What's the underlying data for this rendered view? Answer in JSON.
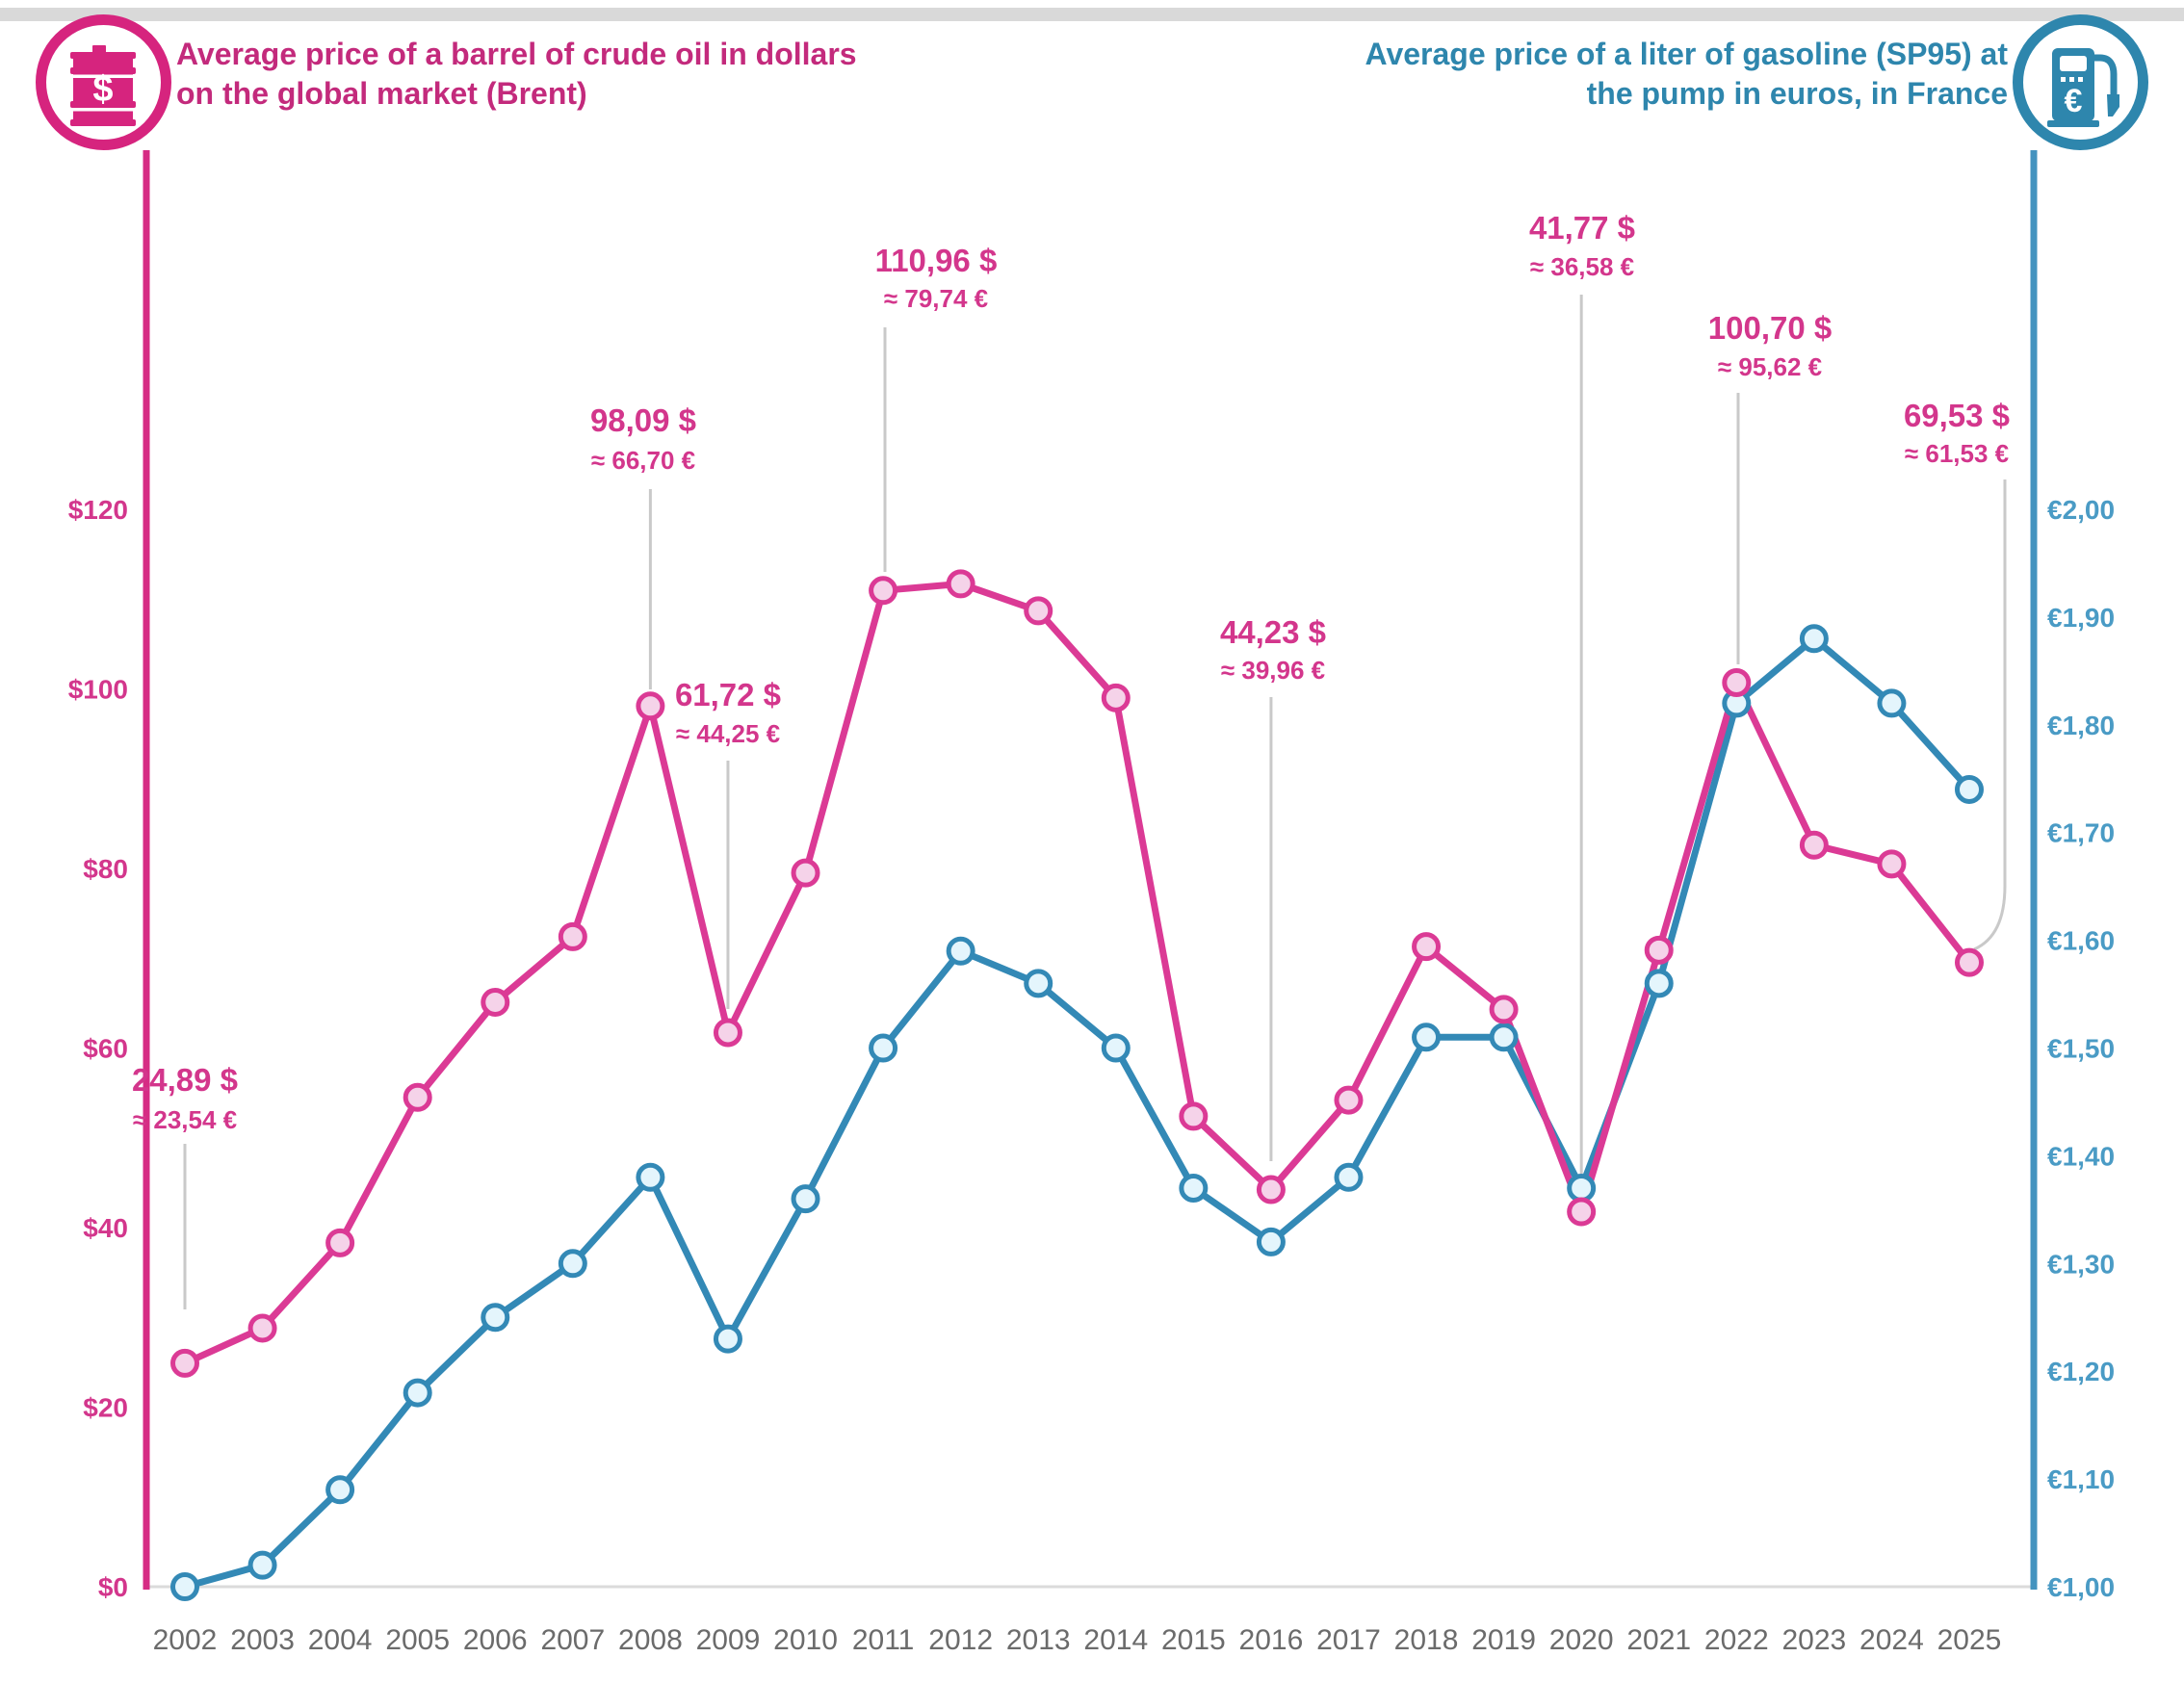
{
  "header": {
    "brent_title_line1": "Average price of a barrel of crude oil in dollars",
    "brent_title_line2": "on the global market (Brent)",
    "gasoline_title_line1": "Average price of a liter of gasoline (SP95) at",
    "gasoline_title_line2": "the pump in euros, in France",
    "left_icon_glyph": "$",
    "right_icon_glyph": "€"
  },
  "colors": {
    "pink_line": "#DB3A95",
    "pink_marker_fill": "#F5D3E9",
    "pink_text": "#D3368C",
    "pink_title": "#C32A7C",
    "pink_axis": "#D62C84",
    "blue_line": "#3389B6",
    "blue_marker_fill": "#E4F5FC",
    "blue_text": "#4A9BC5",
    "blue_title": "#2E86AD",
    "blue_axis": "#4493BF",
    "year_text": "#6B6B6B",
    "callout_line": "#C9C9C9",
    "baseline": "#DBDBDB"
  },
  "chart_data": {
    "type": "line",
    "title_left": "Average price of a barrel of crude oil in dollars on the global market (Brent)",
    "title_right": "Average price of a liter of gasoline (SP95) at the pump in euros, in France",
    "x": [
      2002,
      2003,
      2004,
      2005,
      2006,
      2007,
      2008,
      2009,
      2010,
      2011,
      2012,
      2013,
      2014,
      2015,
      2016,
      2017,
      2018,
      2019,
      2020,
      2021,
      2022,
      2023,
      2024,
      2025
    ],
    "x_ticks": [
      "2002",
      "2003",
      "2004",
      "2005",
      "2006",
      "2007",
      "2008",
      "2009",
      "2010",
      "2011",
      "2012",
      "2013",
      "2014",
      "2015",
      "2016",
      "2017",
      "2018",
      "2019",
      "2020",
      "2021",
      "2022",
      "2023",
      "2024",
      "2025"
    ],
    "series": [
      {
        "name": "Brent crude oil price (USD per barrel)",
        "axis": "left",
        "values": [
          24.89,
          28.8,
          38.3,
          54.5,
          65.1,
          72.4,
          98.09,
          61.72,
          79.5,
          110.96,
          111.7,
          108.7,
          99.0,
          52.4,
          44.23,
          54.2,
          71.3,
          64.3,
          41.77,
          70.9,
          100.7,
          82.6,
          80.5,
          69.53
        ]
      },
      {
        "name": "SP95 gasoline price at the pump in France (EUR per liter)",
        "axis": "right",
        "values": [
          1.0,
          1.02,
          1.09,
          1.18,
          1.25,
          1.3,
          1.38,
          1.23,
          1.36,
          1.5,
          1.59,
          1.56,
          1.5,
          1.37,
          1.32,
          1.38,
          1.51,
          1.51,
          1.37,
          1.56,
          1.82,
          1.88,
          1.82,
          1.74
        ]
      }
    ],
    "left_axis": {
      "range": [
        0,
        120
      ],
      "tick_values": [
        0,
        20,
        40,
        60,
        80,
        100,
        120
      ],
      "tick_labels": [
        "$0",
        "$20",
        "$40",
        "$60",
        "$80",
        "$100",
        "$120"
      ]
    },
    "right_axis": {
      "range": [
        1.0,
        2.0
      ],
      "tick_values": [
        1.0,
        1.1,
        1.2,
        1.3,
        1.4,
        1.5,
        1.6,
        1.7,
        1.8,
        1.9,
        2.0
      ],
      "tick_labels": [
        "€1,00",
        "€1,10",
        "€1,20",
        "€1,30",
        "€1,40",
        "€1,50",
        "€1,60",
        "€1,70",
        "€1,80",
        "€1,90",
        "€2,00"
      ]
    },
    "grid": false,
    "legend_position": "none",
    "annotations": [
      {
        "year": 2002,
        "usd": 24.89,
        "usd_label": "24,89 $",
        "eur_label": "≈ 23,54 €"
      },
      {
        "year": 2008,
        "usd": 98.09,
        "usd_label": "98,09 $",
        "eur_label": "≈ 66,70 €"
      },
      {
        "year": 2009,
        "usd": 61.72,
        "usd_label": "61,72 $",
        "eur_label": "≈ 44,25 €"
      },
      {
        "year": 2011,
        "usd": 110.96,
        "usd_label": "110,96 $",
        "eur_label": "≈ 79,74 €"
      },
      {
        "year": 2016,
        "usd": 44.23,
        "usd_label": "44,23 $",
        "eur_label": "≈ 39,96 €"
      },
      {
        "year": 2020,
        "usd": 41.77,
        "usd_label": "41,77 $",
        "eur_label": "≈ 36,58 €"
      },
      {
        "year": 2022,
        "usd": 100.7,
        "usd_label": "100,70 $",
        "eur_label": "≈ 95,62 €"
      },
      {
        "year": 2025,
        "usd": 69.53,
        "usd_label": "69,53 $",
        "eur_label": "≈ 61,53 €"
      }
    ]
  }
}
